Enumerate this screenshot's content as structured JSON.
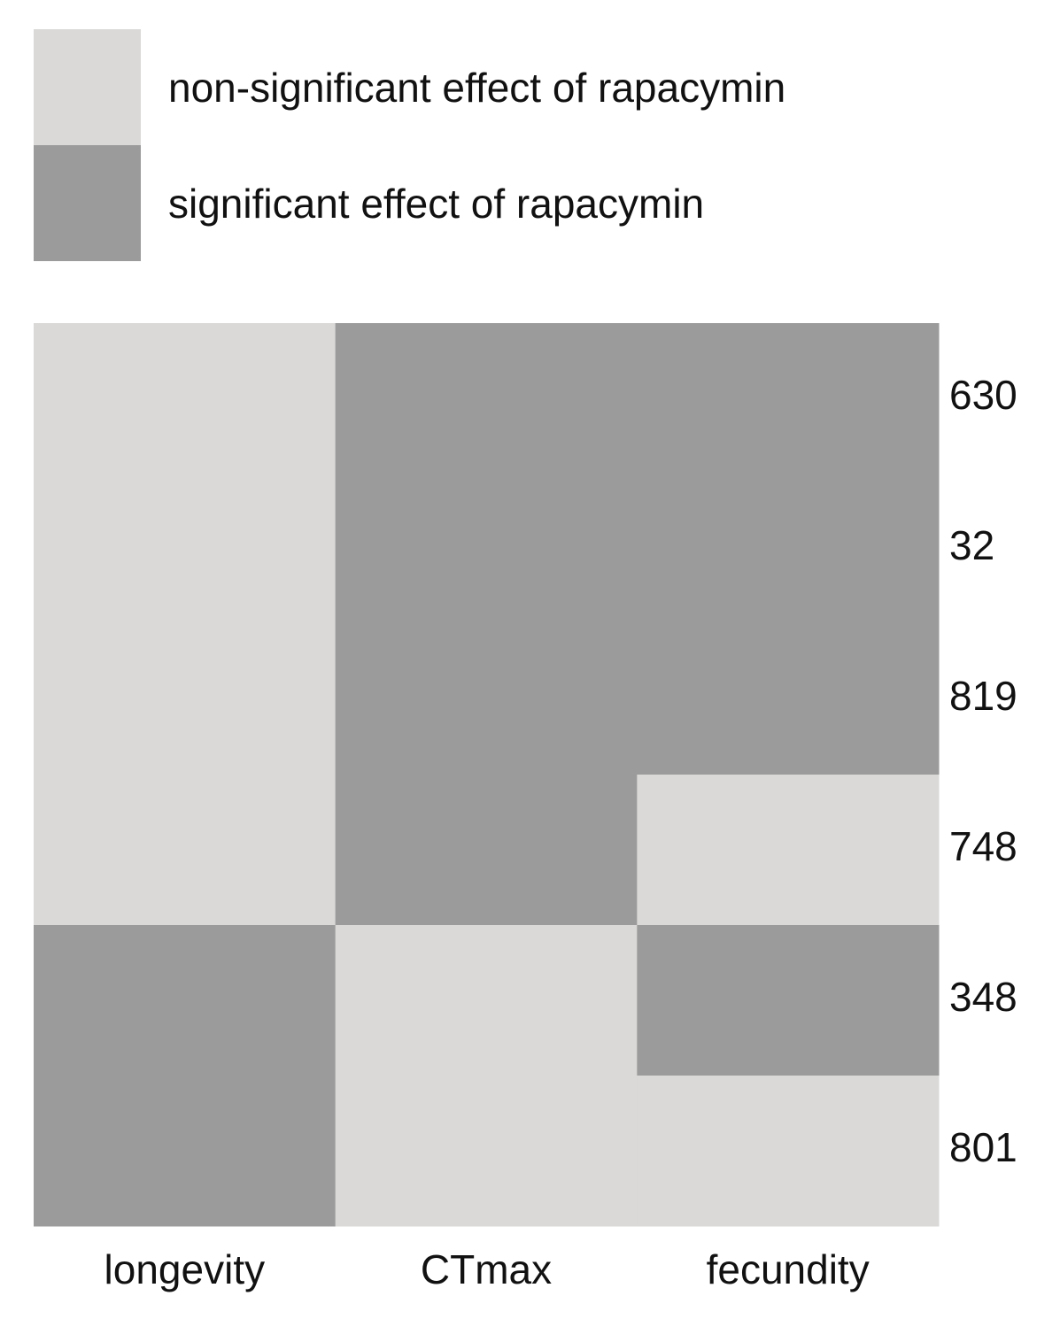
{
  "chart_data": {
    "type": "heatmap",
    "legend": [
      {
        "label": "non-significant effect of rapacymin",
        "color": "#dad9d7",
        "significant": false
      },
      {
        "label": "significant effect of rapacymin",
        "color": "#9b9b9b",
        "significant": true
      }
    ],
    "columns": [
      "longevity",
      "CTmax",
      "fecundity"
    ],
    "rows": [
      "630",
      "32",
      "819",
      "748",
      "348",
      "801"
    ],
    "significant": [
      [
        false,
        true,
        true
      ],
      [
        false,
        true,
        true
      ],
      [
        false,
        true,
        true
      ],
      [
        false,
        true,
        false
      ],
      [
        true,
        false,
        true
      ],
      [
        true,
        false,
        false
      ]
    ]
  }
}
